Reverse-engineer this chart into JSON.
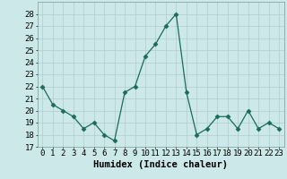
{
  "x": [
    0,
    1,
    2,
    3,
    4,
    5,
    6,
    7,
    8,
    9,
    10,
    11,
    12,
    13,
    14,
    15,
    16,
    17,
    18,
    19,
    20,
    21,
    22,
    23
  ],
  "y": [
    22,
    20.5,
    20,
    19.5,
    18.5,
    19,
    18,
    17.5,
    21.5,
    22,
    24.5,
    25.5,
    27,
    28,
    21.5,
    18,
    18.5,
    19.5,
    19.5,
    18.5,
    20,
    18.5,
    19,
    18.5
  ],
  "line_color": "#1a6b5a",
  "marker": "D",
  "marker_size": 2.5,
  "bg_color": "#cce8e8",
  "grid_color": "#b0cccc",
  "xlabel": "Humidex (Indice chaleur)",
  "xlabel_fontsize": 7.5,
  "tick_fontsize": 6.5,
  "ylim": [
    17,
    29
  ],
  "yticks": [
    17,
    18,
    19,
    20,
    21,
    22,
    23,
    24,
    25,
    26,
    27,
    28
  ],
  "xlim": [
    -0.5,
    23.5
  ],
  "xticks": [
    0,
    1,
    2,
    3,
    4,
    5,
    6,
    7,
    8,
    9,
    10,
    11,
    12,
    13,
    14,
    15,
    16,
    17,
    18,
    19,
    20,
    21,
    22,
    23
  ]
}
